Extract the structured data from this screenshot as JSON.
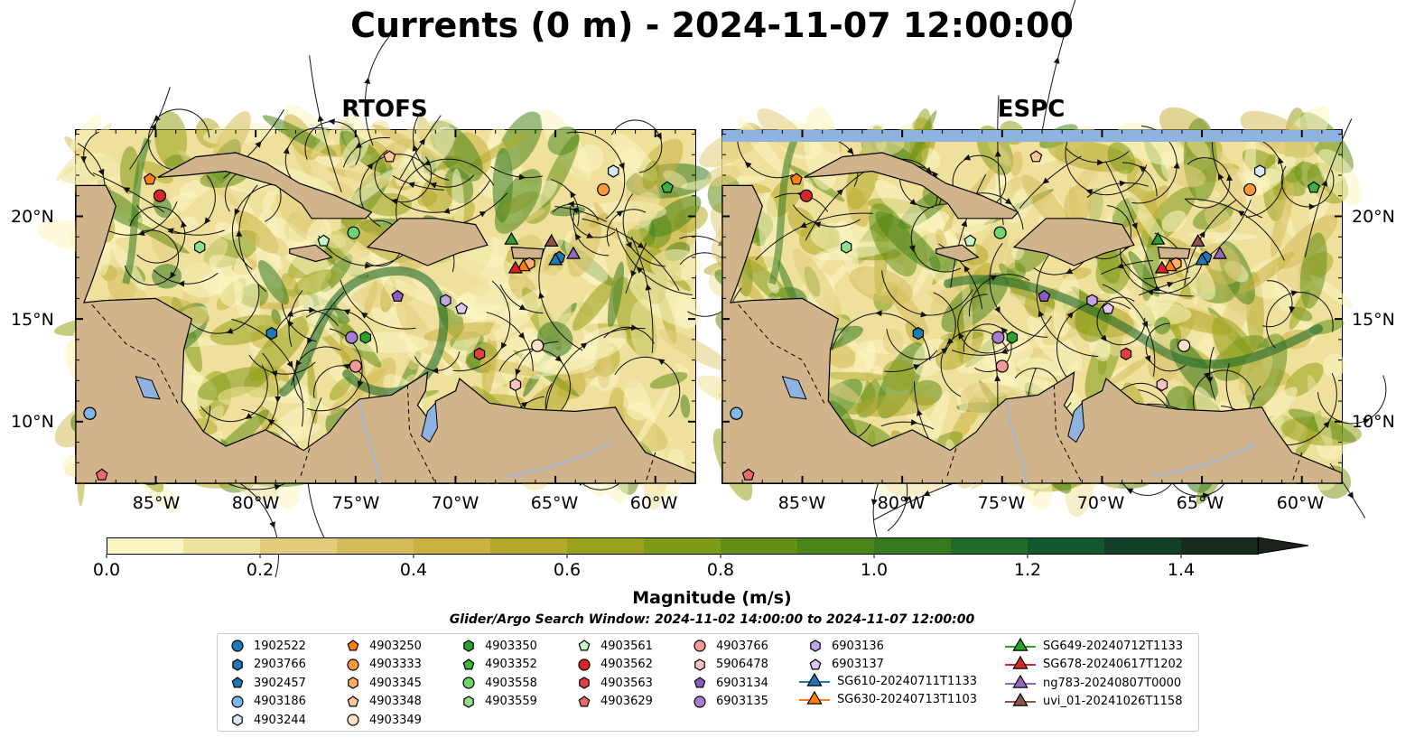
{
  "title": "Currents (0 m) - 2024-11-07 12:00:00",
  "panels": [
    {
      "title": "RTOFS"
    },
    {
      "title": "ESPC"
    }
  ],
  "lon_ticks": [
    "85°W",
    "80°W",
    "75°W",
    "70°W",
    "65°W",
    "60°W"
  ],
  "lat_ticks": [
    "20°N",
    "15°N",
    "10°N"
  ],
  "map_extent": {
    "lon": [
      -89,
      -58
    ],
    "lat": [
      7,
      24.2
    ]
  },
  "colorbar": {
    "label": "Magnitude (m/s)",
    "ticks": [
      "0.0",
      "0.2",
      "0.4",
      "0.6",
      "0.8",
      "1.0",
      "1.2",
      "1.4"
    ],
    "levels": [
      0,
      1.5
    ],
    "extend": "max",
    "colors": [
      "#fbf5c2",
      "#efe29d",
      "#e2cd7d",
      "#d5bd5c",
      "#c9b23f",
      "#b3aa2a",
      "#98a21b",
      "#7f9a17",
      "#648f17",
      "#4b8519",
      "#357a1f",
      "#216b2b",
      "#14582d",
      "#123f27",
      "#172d1c",
      "#1b231a"
    ]
  },
  "search_window": "Glider/Argo Search Window: 2024-11-02 14:00:00 to 2024-11-07 12:00:00",
  "colors": {
    "land": "#d2b48c",
    "water": "#8fb3e0",
    "river": "#a3b8d8"
  },
  "platforms": [
    {
      "id": "1902522",
      "marker": "circle",
      "color": "#1f77b4",
      "lon": -88.3,
      "lat": 10.4
    },
    {
      "id": "2903766",
      "marker": "hexagon",
      "color": "#1f77b4",
      "lon": -79.2,
      "lat": 14.3
    },
    {
      "id": "3902457",
      "marker": "pentagon",
      "color": "#1f77b4",
      "lon": -64.8,
      "lat": 18.0
    },
    {
      "id": "4903186",
      "marker": "circle",
      "color": "#7db8e8",
      "lon": -88.3,
      "lat": 10.4
    },
    {
      "id": "4903244",
      "marker": "hexagon",
      "color": "#d6e8fa",
      "lon": -62.1,
      "lat": 22.2
    },
    {
      "id": "4903250",
      "marker": "pentagon",
      "color": "#ff7f0e",
      "lon": -85.3,
      "lat": 21.8
    },
    {
      "id": "4903333",
      "marker": "circle",
      "color": "#ff9a3a",
      "lon": -62.6,
      "lat": 21.3
    },
    {
      "id": "4903345",
      "marker": "hexagon",
      "color": "#ffb066",
      "lon": -66.3,
      "lat": 17.7
    },
    {
      "id": "4903348",
      "marker": "pentagon",
      "color": "#ffc99a",
      "lon": -73.3,
      "lat": 22.9
    },
    {
      "id": "4903349",
      "marker": "circle",
      "color": "#ffe2c6",
      "lon": -65.9,
      "lat": 13.7
    },
    {
      "id": "4903350",
      "marker": "hexagon",
      "color": "#2ca02c",
      "lon": -74.5,
      "lat": 14.1
    },
    {
      "id": "4903352",
      "marker": "pentagon",
      "color": "#3cb33c",
      "lon": -59.4,
      "lat": 21.4
    },
    {
      "id": "4903558",
      "marker": "circle",
      "color": "#6fd36f",
      "lon": -75.1,
      "lat": 19.2
    },
    {
      "id": "4903559",
      "marker": "hexagon",
      "color": "#8ee08e",
      "lon": -82.8,
      "lat": 18.5
    },
    {
      "id": "4903561",
      "marker": "pentagon",
      "color": "#c6f5c6",
      "lon": -76.6,
      "lat": 18.8
    },
    {
      "id": "4903562",
      "marker": "circle",
      "color": "#d62728",
      "lon": -84.8,
      "lat": 21.0
    },
    {
      "id": "4903563",
      "marker": "hexagon",
      "color": "#e0403f",
      "lon": -68.8,
      "lat": 13.3
    },
    {
      "id": "4903629",
      "marker": "pentagon",
      "color": "#ec6a6a",
      "lon": -87.7,
      "lat": 7.4
    },
    {
      "id": "4903766",
      "marker": "circle",
      "color": "#f29a9a",
      "lon": -75.0,
      "lat": 12.7
    },
    {
      "id": "5906478",
      "marker": "hexagon",
      "color": "#f9c2c2",
      "lon": -67.0,
      "lat": 11.8
    },
    {
      "id": "6903134",
      "marker": "pentagon",
      "color": "#8c5cc0",
      "lon": -72.9,
      "lat": 16.1
    },
    {
      "id": "6903135",
      "marker": "circle",
      "color": "#a67dd3",
      "lon": -75.2,
      "lat": 14.1
    },
    {
      "id": "6903136",
      "marker": "hexagon",
      "color": "#c3a3e6",
      "lon": -70.5,
      "lat": 15.9
    },
    {
      "id": "6903137",
      "marker": "pentagon",
      "color": "#dcc7f5",
      "lon": -69.7,
      "lat": 15.5
    },
    {
      "id": "SG610-20240711T1133",
      "marker": "triangle",
      "color": "#1f77b4",
      "lon": -65.0,
      "lat": 17.9,
      "line": true
    },
    {
      "id": "SG630-20240713T1103",
      "marker": "triangle",
      "color": "#ff7f0e",
      "lon": -66.6,
      "lat": 17.6,
      "line": true
    },
    {
      "id": "SG649-20240712T1133",
      "marker": "triangle",
      "color": "#2ca02c",
      "lon": -67.2,
      "lat": 18.9,
      "line": true
    },
    {
      "id": "SG678-20240617T1202",
      "marker": "triangle",
      "color": "#d62728",
      "lon": -67.0,
      "lat": 17.5,
      "line": true
    },
    {
      "id": "ng783-20240807T0000",
      "marker": "triangle",
      "color": "#9467bd",
      "lon": -64.1,
      "lat": 18.2,
      "line": true
    },
    {
      "id": "uvi_01-20241026T1158",
      "marker": "triangle",
      "color": "#8c564b",
      "lon": -65.2,
      "lat": 18.8,
      "line": true
    }
  ]
}
